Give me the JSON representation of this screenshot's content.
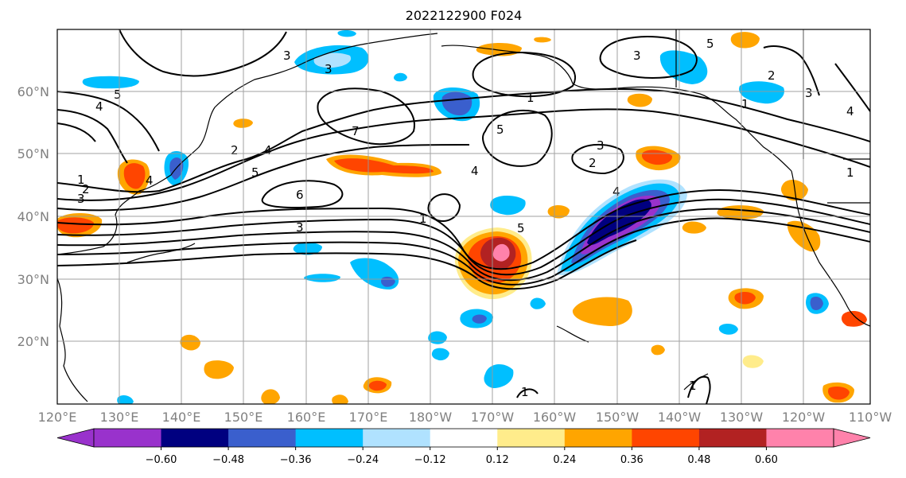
{
  "title": "2022122900 F024",
  "lon_labels": [
    "120°E",
    "130°E",
    "140°E",
    "150°E",
    "160°E",
    "170°E",
    "180°W",
    "170°W",
    "160°W",
    "150°W",
    "140°W",
    "130°W",
    "120°W",
    "110°W"
  ],
  "lat_labels": [
    "20°N",
    "30°N",
    "40°N",
    "50°N",
    "60°N"
  ],
  "colorbar": {
    "colors": [
      "#9932cc",
      "#000080",
      "#3a5fcd",
      "#00bfff",
      "#b0e2ff",
      "#ffffff",
      "#ffec8b",
      "#ffa500",
      "#ff4500",
      "#b22222",
      "#ff82ab"
    ],
    "ticks": [
      "−0.60",
      "−0.48",
      "−0.36",
      "−0.24",
      "−0.12",
      "0.12",
      "0.24",
      "0.36",
      "0.48",
      "0.60"
    ]
  },
  "contour_labels": [
    "5",
    "4",
    "1",
    "2",
    "3",
    "3",
    "2",
    "4",
    "5",
    "6",
    "7",
    "3",
    "1",
    "5",
    "3",
    "4",
    "3",
    "1",
    "2",
    "1",
    "3",
    "4",
    "5",
    "1",
    "2",
    "3",
    "4",
    "4",
    "5",
    "1",
    "1"
  ]
}
